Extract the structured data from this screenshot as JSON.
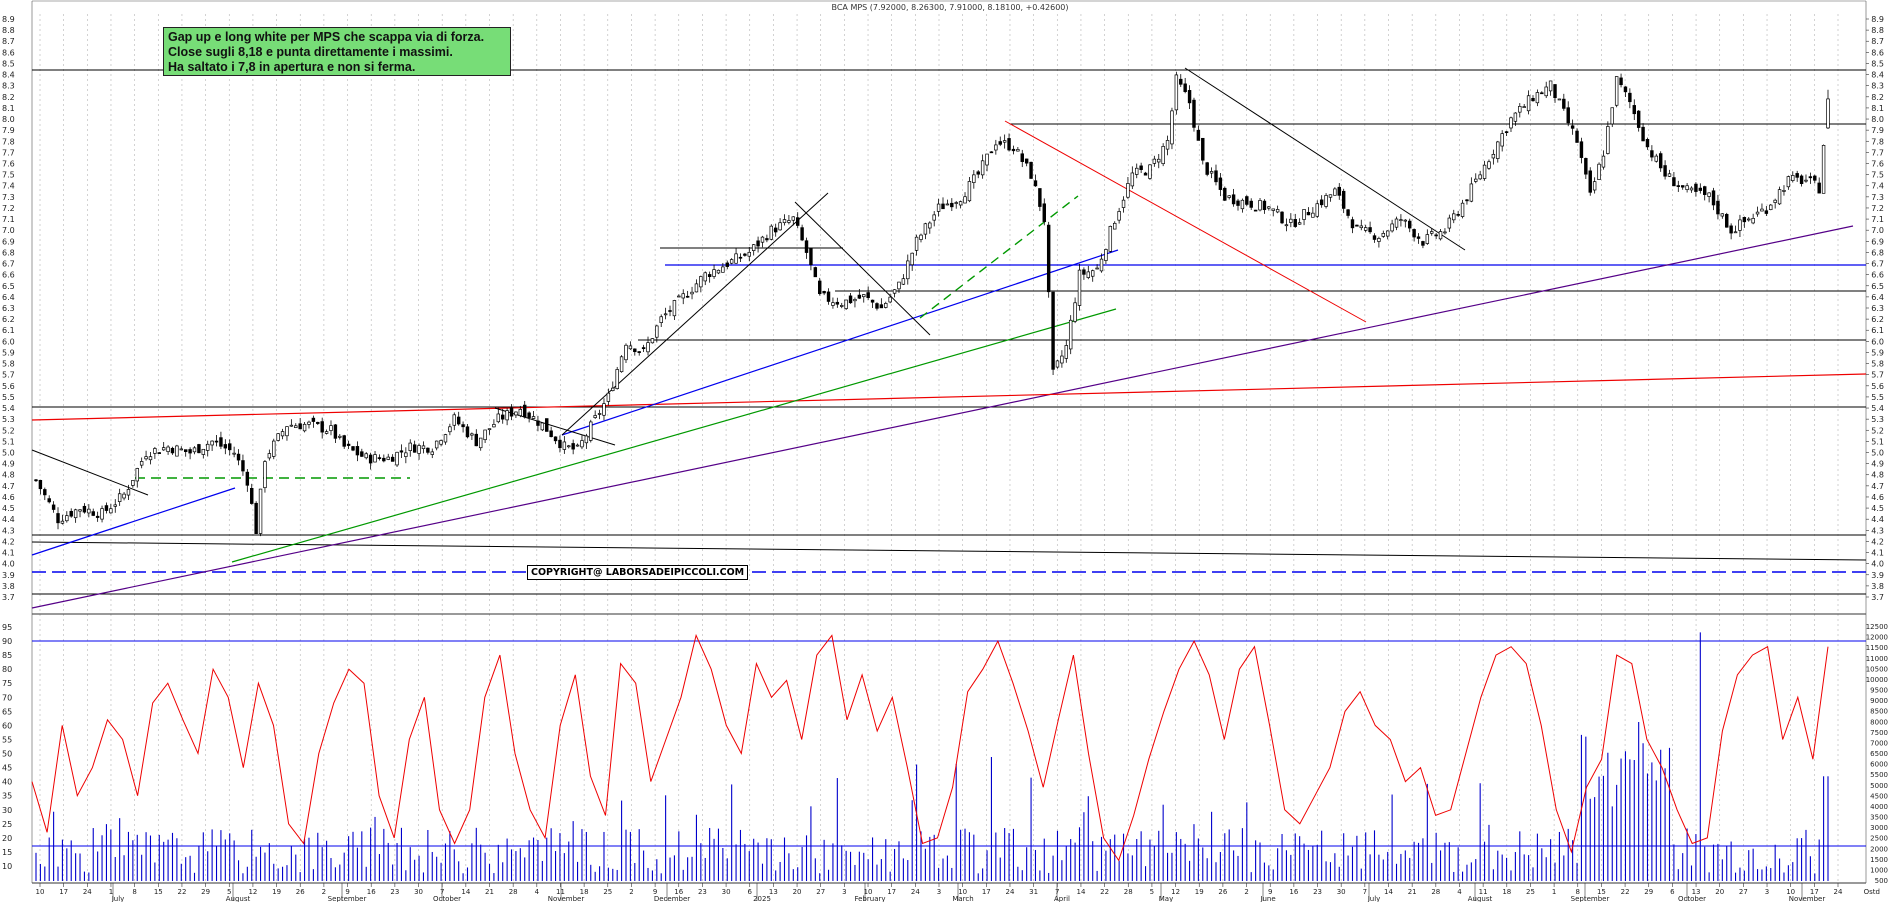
{
  "header": {
    "title": "BCA MPS (7.92000, 8.26300, 7.91000, 8.18100, +0.42600)"
  },
  "annotation": {
    "lines": [
      "Gap up e long white per MPS che scappa via di forza.",
      "Close sugli 8,18  e punta direttamente i massimi.",
      "Ha saltato i 7,8  in apertura e non si ferma."
    ]
  },
  "copyright": "COPYRIGHT@ LABORSADEIPICCOLI.COM",
  "indicator_corner_label": "Ostd",
  "colors": {
    "candle": "#000000",
    "support_line": "#000000",
    "blue_trend": "#0000ee",
    "red_trend": "#ee0000",
    "green_trend": "#009900",
    "purple_trend": "#550088",
    "oscillator": "#ee0000",
    "volume": "#0000cc",
    "annotation_bg": "#77dd77"
  },
  "chart_data": [
    {
      "type": "candlestick",
      "title": "BCA MPS (7.92000, 8.26300, 7.91000, 8.18100, +0.42600)",
      "ylim": [
        3.65,
        9.0
      ],
      "y_ticks": [
        "3.7",
        "3.8",
        "3.9",
        "4.0",
        "4.1",
        "4.2",
        "4.3",
        "4.4",
        "4.5",
        "4.6",
        "4.7",
        "4.8",
        "4.9",
        "5.0",
        "5.1",
        "5.2",
        "5.3",
        "5.4",
        "5.5",
        "5.6",
        "5.7",
        "5.8",
        "5.9",
        "6.0",
        "6.1",
        "6.2",
        "6.3",
        "6.4",
        "6.5",
        "6.6",
        "6.7",
        "6.8",
        "6.9",
        "7.0",
        "7.1",
        "7.2",
        "7.3",
        "7.4",
        "7.5",
        "7.6",
        "7.7",
        "7.8",
        "7.9",
        "8.0",
        "8.1",
        "8.2",
        "8.3",
        "8.4",
        "8.5",
        "8.6",
        "8.7",
        "8.8",
        "8.9"
      ],
      "grid": "vertical dashed",
      "close_path": [
        [
          0,
          4.75
        ],
        [
          5,
          4.4
        ],
        [
          10,
          4.5
        ],
        [
          15,
          4.45
        ],
        [
          20,
          4.62
        ],
        [
          25,
          5.0
        ],
        [
          30,
          5.05
        ],
        [
          35,
          5.0
        ],
        [
          40,
          5.1
        ],
        [
          45,
          5.0
        ],
        [
          48,
          4.75
        ],
        [
          50,
          4.3
        ],
        [
          52,
          4.95
        ],
        [
          57,
          5.25
        ],
        [
          62,
          5.25
        ],
        [
          67,
          5.2
        ],
        [
          70,
          5.05
        ],
        [
          75,
          4.95
        ],
        [
          80,
          4.95
        ],
        [
          85,
          5.05
        ],
        [
          90,
          5.05
        ],
        [
          95,
          5.3
        ],
        [
          100,
          5.1
        ],
        [
          105,
          5.3
        ],
        [
          110,
          5.4
        ],
        [
          115,
          5.25
        ],
        [
          120,
          5.05
        ],
        [
          123,
          5.02
        ],
        [
          127,
          5.3
        ],
        [
          130,
          5.5
        ],
        [
          134,
          6.0
        ],
        [
          138,
          5.9
        ],
        [
          142,
          6.2
        ],
        [
          147,
          6.4
        ],
        [
          152,
          6.6
        ],
        [
          157,
          6.7
        ],
        [
          162,
          6.8
        ],
        [
          167,
          7.0
        ],
        [
          172,
          7.1
        ],
        [
          175,
          6.8
        ],
        [
          178,
          6.4
        ],
        [
          183,
          6.35
        ],
        [
          188,
          6.4
        ],
        [
          192,
          6.3
        ],
        [
          196,
          6.5
        ],
        [
          200,
          6.9
        ],
        [
          205,
          7.2
        ],
        [
          210,
          7.3
        ],
        [
          214,
          7.5
        ],
        [
          218,
          7.8
        ],
        [
          222,
          7.75
        ],
        [
          226,
          7.5
        ],
        [
          229,
          7.1
        ],
        [
          231,
          5.7
        ],
        [
          234,
          5.95
        ],
        [
          237,
          6.6
        ],
        [
          241,
          6.65
        ],
        [
          245,
          7.1
        ],
        [
          249,
          7.5
        ],
        [
          253,
          7.55
        ],
        [
          257,
          7.8
        ],
        [
          259,
          8.35
        ],
        [
          262,
          8.15
        ],
        [
          265,
          7.6
        ],
        [
          270,
          7.3
        ],
        [
          275,
          7.25
        ],
        [
          280,
          7.2
        ],
        [
          285,
          7.05
        ],
        [
          290,
          7.2
        ],
        [
          295,
          7.35
        ],
        [
          300,
          7.0
        ],
        [
          305,
          6.95
        ],
        [
          310,
          7.1
        ],
        [
          315,
          6.9
        ],
        [
          320,
          7.0
        ],
        [
          325,
          7.3
        ],
        [
          330,
          7.65
        ],
        [
          335,
          8.0
        ],
        [
          340,
          8.2
        ],
        [
          344,
          8.3
        ],
        [
          347,
          8.05
        ],
        [
          350,
          7.8
        ],
        [
          353,
          7.3
        ],
        [
          356,
          7.7
        ],
        [
          359,
          8.35
        ],
        [
          362,
          8.15
        ],
        [
          366,
          7.75
        ],
        [
          370,
          7.5
        ],
        [
          375,
          7.35
        ],
        [
          380,
          7.3
        ],
        [
          385,
          7.0
        ],
        [
          389,
          7.1
        ],
        [
          393,
          7.2
        ],
        [
          398,
          7.45
        ],
        [
          402,
          7.45
        ],
        [
          405,
          7.38
        ],
        [
          407,
          8.181
        ]
      ],
      "volume_scale_ticks": [
        "500",
        "1000",
        "1500",
        "2000",
        "2500",
        "3000",
        "3500",
        "4000",
        "4500",
        "5000",
        "5500",
        "6000",
        "6500",
        "7000",
        "7500",
        "8000",
        "8500",
        "9000",
        "9500",
        "10000",
        "10500",
        "11000",
        "11500",
        "12000",
        "12500"
      ],
      "x_ticks": [
        "10",
        "17",
        "24",
        "1",
        "8",
        "15",
        "22",
        "29",
        "5",
        "12",
        "19",
        "26",
        "2",
        "9",
        "16",
        "23",
        "30",
        "7",
        "14",
        "21",
        "28",
        "4",
        "11",
        "18",
        "25",
        "2",
        "9",
        "16",
        "23",
        "30",
        "6",
        "13",
        "20",
        "27",
        "3",
        "10",
        "17",
        "24",
        "3",
        "10",
        "17",
        "24",
        "31",
        "7",
        "14",
        "22",
        "28",
        "5",
        "12",
        "19",
        "26",
        "2",
        "9",
        "16",
        "23",
        "30",
        "7",
        "14",
        "21",
        "28",
        "4",
        "11",
        "18",
        "25",
        "1",
        "8",
        "15",
        "22",
        "29",
        "6",
        "13",
        "20",
        "27",
        "3",
        "10",
        "17",
        "24"
      ],
      "month_labels": [
        "July",
        "August",
        "September",
        "October",
        "November",
        "December",
        "2025",
        "February",
        "March",
        "April",
        "May",
        "June",
        "July",
        "August",
        "September",
        "October",
        "November"
      ]
    },
    {
      "type": "line",
      "ylim": [
        0,
        100
      ],
      "y_ticks": [
        "10",
        "15",
        "20",
        "25",
        "30",
        "35",
        "40",
        "45",
        "50",
        "55",
        "60",
        "65",
        "70",
        "75",
        "80",
        "85",
        "90",
        "95"
      ],
      "reference_lines": [
        90,
        18
      ],
      "series": [
        {
          "values": [
            40,
            22,
            60,
            35,
            45,
            62,
            55,
            35,
            68,
            75,
            62,
            50,
            80,
            70,
            45,
            75,
            60,
            25,
            18,
            50,
            68,
            80,
            75,
            35,
            20,
            55,
            70,
            30,
            18,
            30,
            70,
            85,
            50,
            30,
            20,
            60,
            78,
            42,
            28,
            82,
            75,
            40,
            55,
            70,
            92,
            80,
            60,
            50,
            82,
            70,
            76,
            55,
            85,
            92,
            62,
            78,
            58,
            70,
            45,
            18,
            20,
            38,
            72,
            80,
            90,
            75,
            58,
            38,
            62,
            85,
            50,
            20,
            12,
            28,
            48,
            65,
            80,
            90,
            78,
            55,
            80,
            88,
            60,
            30,
            25,
            35,
            45,
            65,
            72,
            60,
            55,
            40,
            45,
            28,
            30,
            50,
            70,
            85,
            88,
            82,
            60,
            30,
            15,
            38,
            48,
            85,
            82,
            55,
            45,
            30,
            18,
            20,
            58,
            78,
            85,
            88,
            55,
            70,
            48,
            88
          ]
        }
      ]
    }
  ]
}
